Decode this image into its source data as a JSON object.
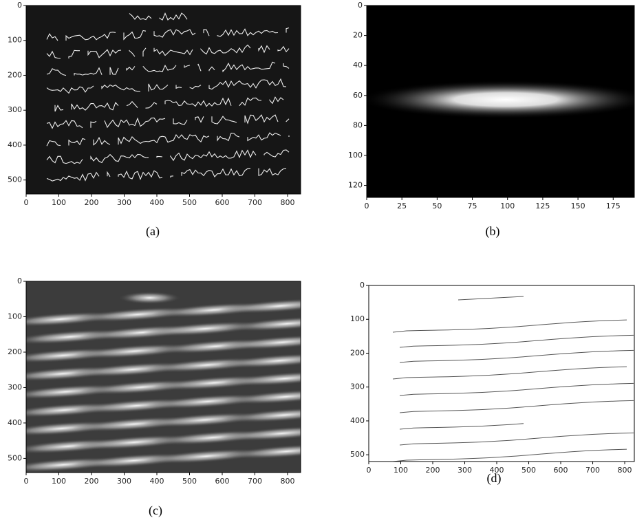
{
  "panels": [
    {
      "caption": "(a)",
      "xlim": [
        0,
        840
      ],
      "ylim": [
        540,
        0
      ],
      "xticks": [
        0,
        100,
        200,
        300,
        400,
        500,
        600,
        700,
        800
      ],
      "yticks": [
        100,
        200,
        300,
        400,
        500,
        0
      ]
    },
    {
      "caption": "(b)",
      "xlim": [
        0,
        190
      ],
      "ylim": [
        128,
        0
      ],
      "xticks": [
        0,
        25,
        50,
        75,
        100,
        125,
        150,
        175
      ],
      "yticks": [
        0,
        20,
        40,
        60,
        80,
        100,
        120
      ]
    },
    {
      "caption": "(c)",
      "xlim": [
        0,
        840
      ],
      "ylim": [
        540,
        0
      ],
      "xticks": [
        0,
        100,
        200,
        300,
        400,
        500,
        600,
        700,
        800
      ],
      "yticks": [
        0,
        100,
        200,
        300,
        400,
        500
      ]
    },
    {
      "caption": "(d)",
      "xlim": [
        0,
        830
      ],
      "ylim": [
        520,
        0
      ],
      "xticks": [
        0,
        100,
        200,
        300,
        400,
        500,
        600,
        700,
        800
      ],
      "yticks": [
        0,
        100,
        200,
        300,
        400,
        500
      ]
    }
  ]
}
